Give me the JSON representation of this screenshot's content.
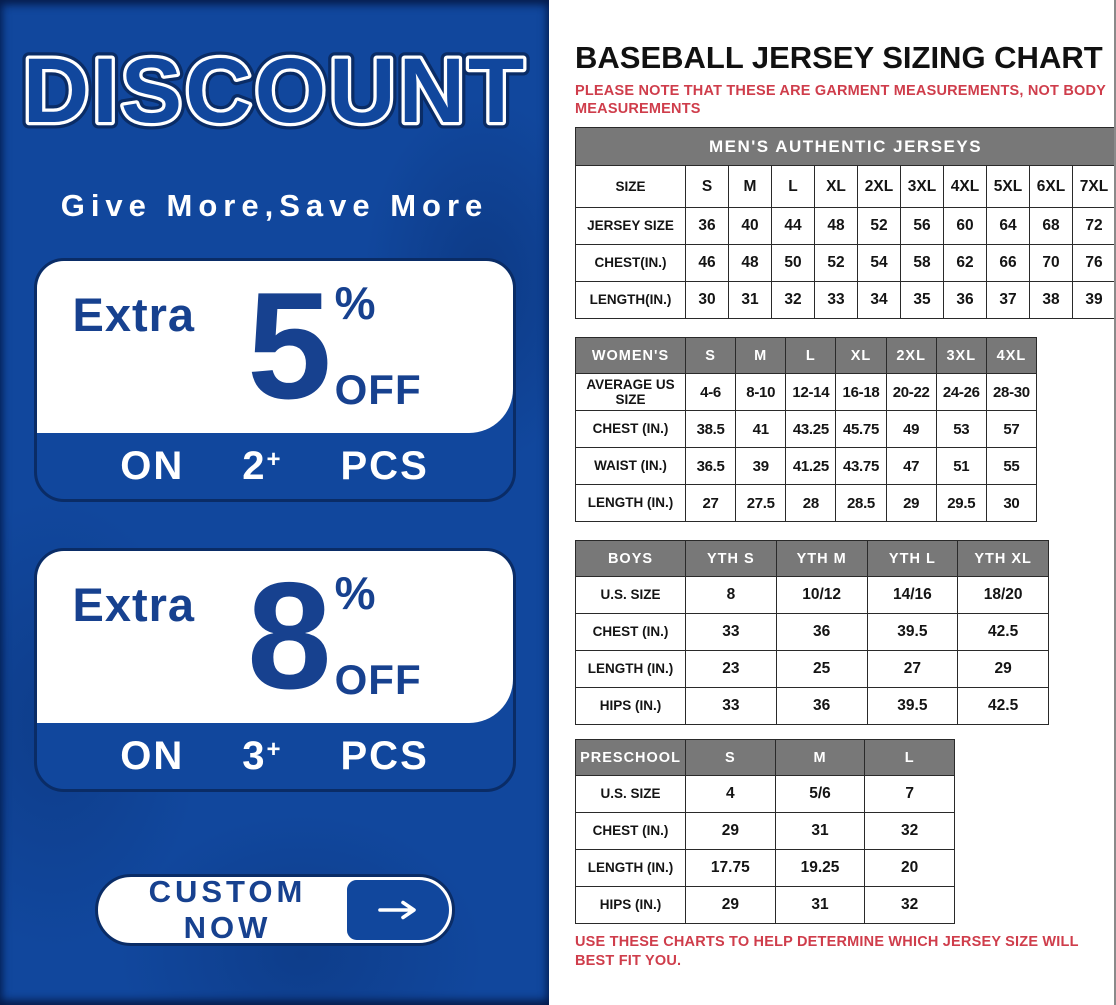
{
  "banner": {
    "title": "DISCOUNT",
    "tagline": "Give More,Save More",
    "offers": [
      {
        "prefix": "Extra",
        "amount": "5",
        "percent": "%",
        "off": "OFF",
        "on": "ON",
        "qty": "2",
        "plus": "+",
        "pcs": "PCS"
      },
      {
        "prefix": "Extra",
        "amount": "8",
        "percent": "%",
        "off": "OFF",
        "on": "ON",
        "qty": "3",
        "plus": "+",
        "pcs": "PCS"
      }
    ],
    "cta": {
      "label": "CUSTOM NOW"
    }
  },
  "sizing": {
    "title": "BASEBALL JERSEY SIZING CHART",
    "note_top": "PLEASE NOTE THAT THESE ARE GARMENT MEASUREMENTS, NOT BODY MEASUREMENTS",
    "note_bottom": "USE THESE CHARTS TO HELP DETERMINE WHICH JERSEY SIZE WILL BEST FIT YOU.",
    "tables": [
      {
        "name": "mens",
        "banner": "MEN'S AUTHENTIC JERSEYS",
        "rows": [
          [
            "SIZE",
            "S",
            "M",
            "L",
            "XL",
            "2XL",
            "3XL",
            "4XL",
            "5XL",
            "6XL",
            "7XL"
          ],
          [
            "JERSEY SIZE",
            "36",
            "40",
            "44",
            "48",
            "52",
            "56",
            "60",
            "64",
            "68",
            "72"
          ],
          [
            "CHEST(IN.)",
            "46",
            "48",
            "50",
            "52",
            "54",
            "58",
            "62",
            "66",
            "70",
            "76"
          ],
          [
            "LENGTH(IN.)",
            "30",
            "31",
            "32",
            "33",
            "34",
            "35",
            "36",
            "37",
            "38",
            "39"
          ]
        ]
      },
      {
        "name": "womens",
        "header": [
          "WOMEN'S",
          "S",
          "M",
          "L",
          "XL",
          "2XL",
          "3XL",
          "4XL"
        ],
        "rows": [
          [
            "AVERAGE US SIZE",
            "4-6",
            "8-10",
            "12-14",
            "16-18",
            "20-22",
            "24-26",
            "28-30"
          ],
          [
            "CHEST (IN.)",
            "38.5",
            "41",
            "43.25",
            "45.75",
            "49",
            "53",
            "57"
          ],
          [
            "WAIST (IN.)",
            "36.5",
            "39",
            "41.25",
            "43.75",
            "47",
            "51",
            "55"
          ],
          [
            "LENGTH (IN.)",
            "27",
            "27.5",
            "28",
            "28.5",
            "29",
            "29.5",
            "30"
          ]
        ]
      },
      {
        "name": "boys",
        "header": [
          "BOYS",
          "YTH S",
          "YTH M",
          "YTH L",
          "YTH XL"
        ],
        "rows": [
          [
            "U.S. SIZE",
            "8",
            "10/12",
            "14/16",
            "18/20"
          ],
          [
            "CHEST (IN.)",
            "33",
            "36",
            "39.5",
            "42.5"
          ],
          [
            "LENGTH (IN.)",
            "23",
            "25",
            "27",
            "29"
          ],
          [
            "HIPS (IN.)",
            "33",
            "36",
            "39.5",
            "42.5"
          ]
        ]
      },
      {
        "name": "preschool",
        "header": [
          "PRESCHOOL",
          "S",
          "M",
          "L"
        ],
        "rows": [
          [
            "U.S. SIZE",
            "4",
            "5/6",
            "7"
          ],
          [
            "CHEST (IN.)",
            "29",
            "31",
            "32"
          ],
          [
            "LENGTH (IN.)",
            "17.75",
            "19.25",
            "20"
          ],
          [
            "HIPS (IN.)",
            "29",
            "31",
            "32"
          ]
        ]
      }
    ]
  },
  "colors": {
    "panel_blue": "#11479d",
    "dark_navy": "#0a2c66",
    "text_blue": "#17418f",
    "header_gray": "#787878",
    "note_red": "#cf3d4b",
    "white": "#ffffff"
  }
}
